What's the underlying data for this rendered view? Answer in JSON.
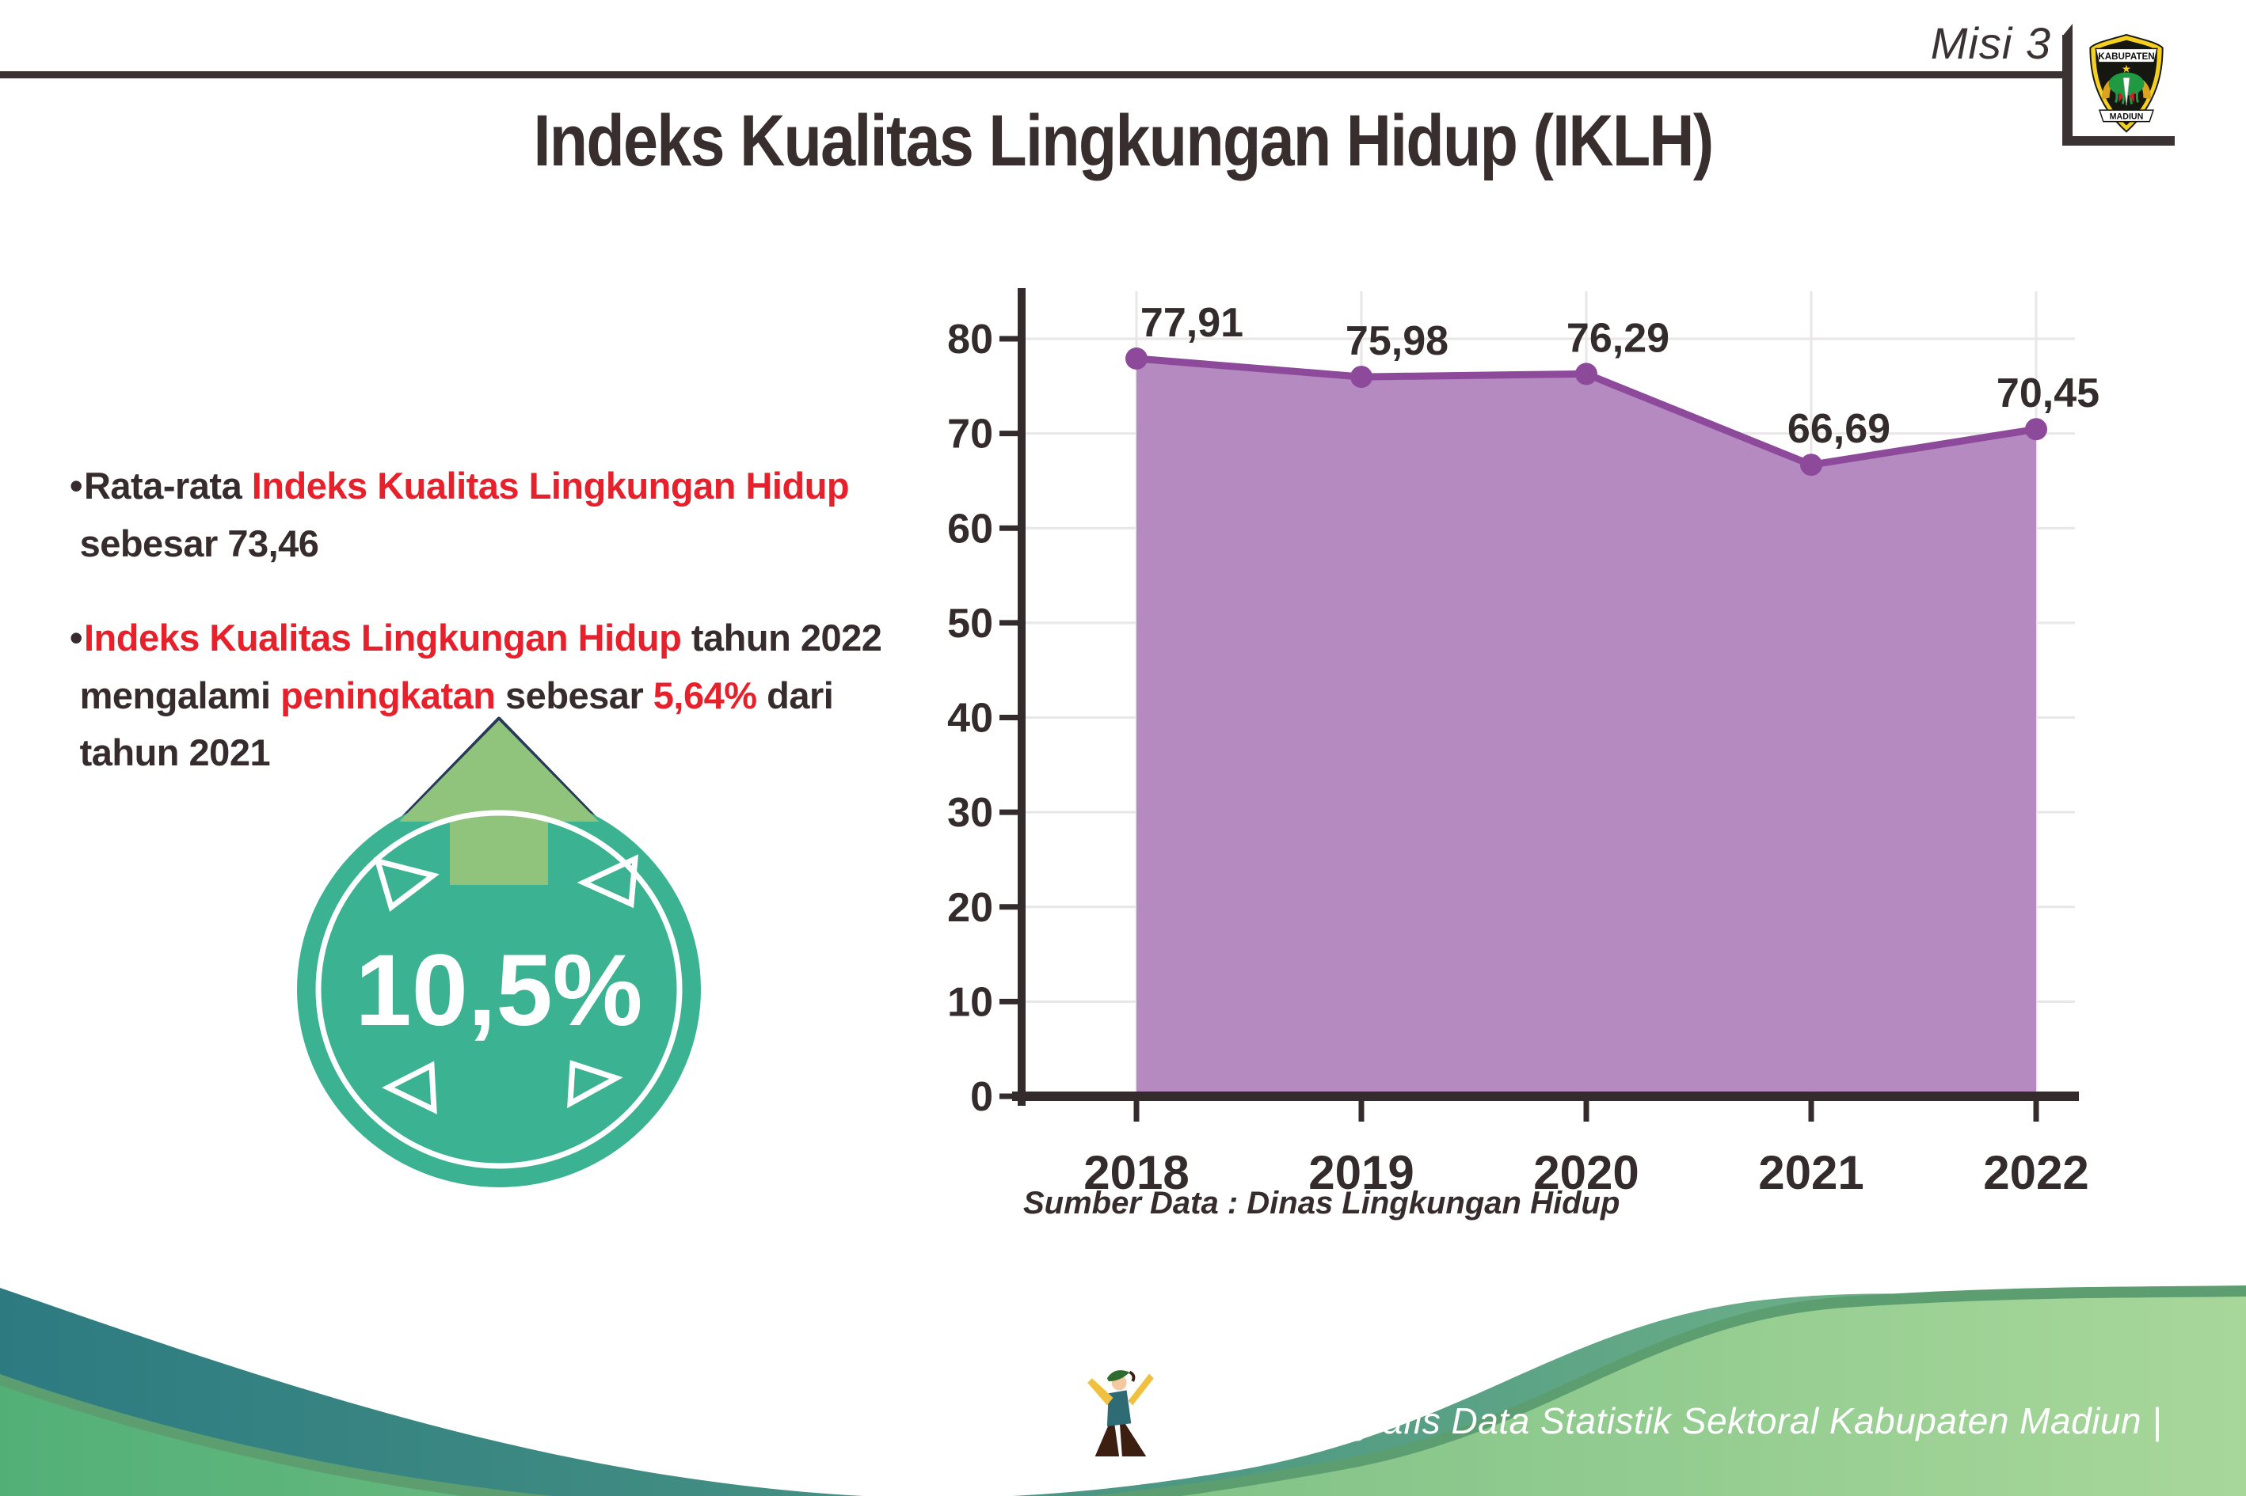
{
  "colors": {
    "dark_text": "#362c2e",
    "red_text": "#e7212b",
    "rule": "#3a3233",
    "badge_teal": "#3bb291",
    "arrow_green": "#90c37c",
    "arrow_outline": "#273a56",
    "chart_line": "#8d4a9b",
    "chart_fill": "#b58ac0",
    "grid": "#e8e6e7",
    "axis": "#332b2c",
    "footer_teal": "#2d7b81",
    "footer_green_light": "#a8d79a",
    "footer_green": "#52b077",
    "footer_edge": "#5d9e71"
  },
  "header": {
    "misi_label": "Misi 3",
    "logo_top": "KABUPATEN",
    "logo_bottom": "MADIUN"
  },
  "title": "Indeks Kualitas Lingkungan Hidup (IKLH)",
  "bullets": [
    {
      "segments": [
        {
          "t": "Rata-rata ",
          "c": "dark"
        },
        {
          "t": "Indeks Kualitas Lingkungan Hidup",
          "c": "red"
        },
        {
          "br": true
        },
        {
          "t": " sebesar 73,46",
          "c": "dark"
        }
      ]
    },
    {
      "segments": [
        {
          "t": "Indeks Kualitas Lingkungan Hidup",
          "c": "red"
        },
        {
          "t": " tahun 2022",
          "c": "dark"
        },
        {
          "br": true
        },
        {
          "t": " mengalami ",
          "c": "dark"
        },
        {
          "t": "peningkatan",
          "c": "red"
        },
        {
          "t": " sebesar ",
          "c": "dark"
        },
        {
          "t": "5,64%",
          "c": "red"
        },
        {
          "t": " dari",
          "c": "dark"
        },
        {
          "br": true
        },
        {
          "t": " tahun 2021",
          "c": "dark"
        }
      ]
    }
  ],
  "badge": {
    "value": "10,5%"
  },
  "chart_data": {
    "type": "area",
    "categories": [
      "2018",
      "2019",
      "2020",
      "2021",
      "2022"
    ],
    "values": [
      77.91,
      75.98,
      76.29,
      66.69,
      70.45
    ],
    "value_labels": [
      "77,91",
      "75,98",
      "76,29",
      "66,69",
      "70,45"
    ],
    "ylim": [
      0,
      80
    ],
    "ytick_step": 10,
    "grid": true,
    "legend": "none",
    "title": "",
    "xlabel": "",
    "ylabel": ""
  },
  "source_note": "Sumber Data : Dinas Lingkungan Hidup",
  "footer": {
    "credit": "Media Infografis Data Statistik Sektoral Kabupaten Madiun |"
  }
}
